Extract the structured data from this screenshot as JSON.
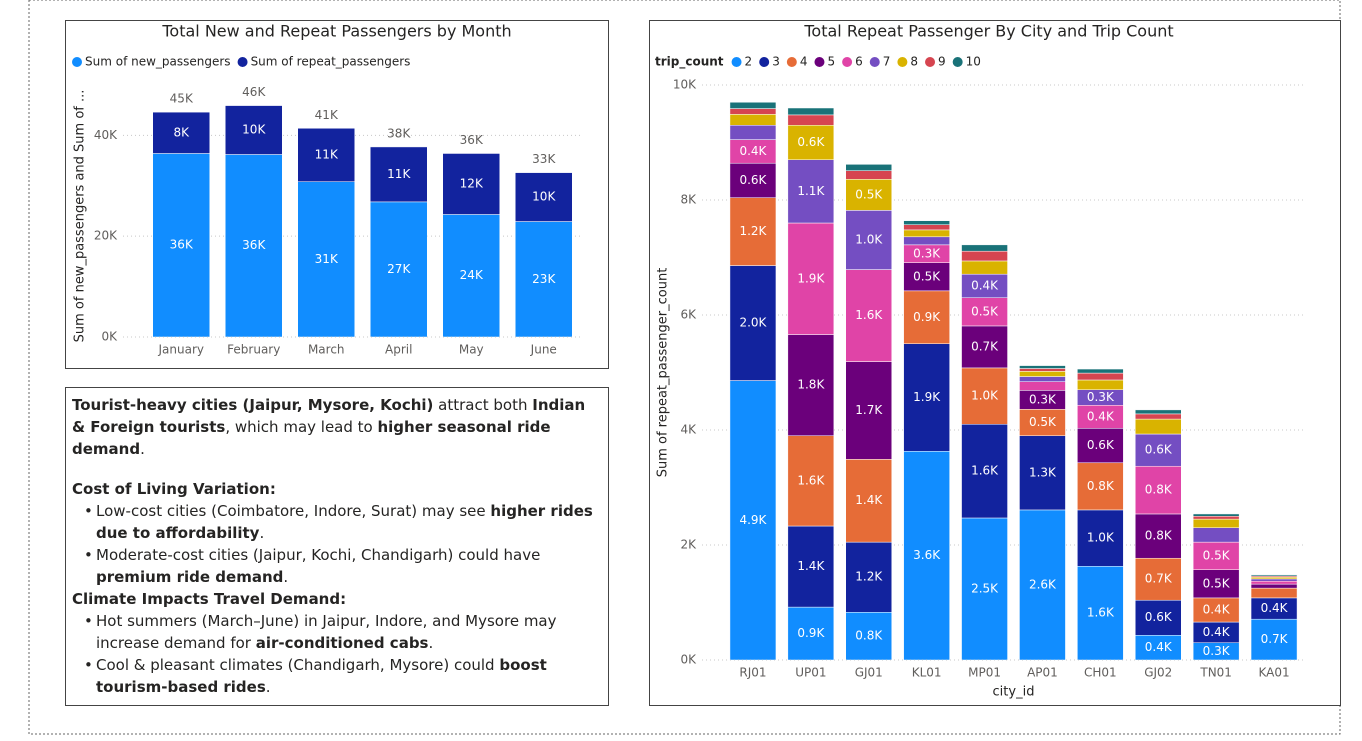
{
  "chart_data": [
    {
      "type": "bar",
      "stacked": true,
      "title": "Total New and Repeat Passengers by Month",
      "y_label": "Sum of new_passengers and Sum of ...",
      "categories": [
        "January",
        "February",
        "March",
        "April",
        "May",
        "June"
      ],
      "series": [
        {
          "name": "Sum of new_passengers",
          "color": "#118dff",
          "values": [
            36400,
            36200,
            30800,
            26800,
            24300,
            22900
          ],
          "value_labels": [
            "36K",
            "36K",
            "31K",
            "27K",
            "24K",
            "23K"
          ]
        },
        {
          "name": "Sum of repeat_passengers",
          "color": "#12239e",
          "values": [
            8200,
            9700,
            10600,
            10900,
            12100,
            9700
          ],
          "value_labels": [
            "8K",
            "10K",
            "11K",
            "11K",
            "12K",
            "10K"
          ]
        }
      ],
      "totals": [
        44600,
        45900,
        41400,
        37700,
        36400,
        32600
      ],
      "total_labels": [
        "45K",
        "46K",
        "41K",
        "38K",
        "36K",
        "33K"
      ],
      "ylim": [
        0,
        48000
      ],
      "yticks": [
        {
          "value": 0,
          "label": "0K"
        },
        {
          "value": 20000,
          "label": "20K"
        },
        {
          "value": 40000,
          "label": "40K"
        }
      ],
      "grid": true
    },
    {
      "type": "bar",
      "stacked": true,
      "title": "Total Repeat Passenger By City and Trip Count",
      "legend_title": "trip_count",
      "y_label": "Sum of repeat_passenger_count",
      "x_label": "city_id",
      "categories": [
        "RJ01",
        "UP01",
        "GJ01",
        "KL01",
        "MP01",
        "AP01",
        "CH01",
        "GJ02",
        "TN01",
        "KA01"
      ],
      "series": [
        {
          "name": "2",
          "color": "#118dff",
          "values": [
            4860,
            920,
            830,
            3630,
            2470,
            2610,
            1630,
            430,
            300,
            710
          ],
          "value_labels": [
            "4.9K",
            "0.9K",
            "0.8K",
            "3.6K",
            "2.5K",
            "2.6K",
            "1.6K",
            "0.4K",
            "0.3K",
            "0.7K"
          ]
        },
        {
          "name": "3",
          "color": "#12239e",
          "values": [
            2000,
            1410,
            1220,
            1870,
            1630,
            1290,
            980,
            610,
            360,
            370
          ],
          "value_labels": [
            "2.0K",
            "1.4K",
            "1.2K",
            "1.9K",
            "1.6K",
            "1.3K",
            "1.0K",
            "0.6K",
            "0.4K",
            "0.4K"
          ]
        },
        {
          "name": "4",
          "color": "#e66c37",
          "values": [
            1180,
            1570,
            1440,
            920,
            980,
            460,
            820,
            730,
            420,
            170
          ],
          "value_labels": [
            "1.2K",
            "1.6K",
            "1.4K",
            "0.9K",
            "1.0K",
            "0.5K",
            "0.8K",
            "0.7K",
            "0.4K",
            null
          ]
        },
        {
          "name": "5",
          "color": "#6b007b",
          "values": [
            600,
            1760,
            1700,
            490,
            730,
            330,
            600,
            770,
            490,
            70
          ],
          "value_labels": [
            "0.6K",
            "1.8K",
            "1.7K",
            "0.5K",
            "0.7K",
            "0.3K",
            "0.6K",
            "0.8K",
            "0.5K",
            null
          ]
        },
        {
          "name": "6",
          "color": "#e044a7",
          "values": [
            410,
            1940,
            1600,
            310,
            490,
            150,
            400,
            830,
            480,
            50
          ],
          "value_labels": [
            "0.4K",
            "1.9K",
            "1.6K",
            "0.3K",
            "0.5K",
            null,
            "0.4K",
            "0.8K",
            "0.5K",
            null
          ]
        },
        {
          "name": "7",
          "color": "#744ec2",
          "values": [
            250,
            1100,
            1030,
            140,
            410,
            90,
            270,
            560,
            250,
            40
          ],
          "value_labels": [
            null,
            "1.1K",
            "1.0K",
            null,
            "0.4K",
            null,
            "0.3K",
            "0.6K",
            null,
            null
          ]
        },
        {
          "name": "8",
          "color": "#d9b300",
          "values": [
            190,
            600,
            540,
            120,
            230,
            90,
            170,
            260,
            150,
            30
          ],
          "value_labels": [
            null,
            "0.6K",
            "0.5K",
            null,
            null,
            null,
            null,
            null,
            null,
            null
          ]
        },
        {
          "name": "9",
          "color": "#d64550",
          "values": [
            100,
            180,
            150,
            90,
            170,
            50,
            120,
            90,
            50,
            20
          ],
          "value_labels": [
            null,
            null,
            null,
            null,
            null,
            null,
            null,
            null,
            null,
            null
          ]
        },
        {
          "name": "10",
          "color": "#197278",
          "values": [
            110,
            120,
            110,
            70,
            110,
            50,
            70,
            70,
            40,
            20
          ],
          "value_labels": [
            null,
            null,
            null,
            null,
            null,
            null,
            null,
            null,
            null,
            null
          ]
        }
      ],
      "ylim": [
        0,
        10000
      ],
      "yticks": [
        {
          "value": 0,
          "label": "0K"
        },
        {
          "value": 2000,
          "label": "2K"
        },
        {
          "value": 4000,
          "label": "4K"
        },
        {
          "value": 6000,
          "label": "6K"
        },
        {
          "value": 8000,
          "label": "8K"
        },
        {
          "value": 10000,
          "label": "10K"
        }
      ],
      "grid": true
    }
  ],
  "text_box": {
    "blocks": [
      {
        "runs": [
          {
            "text": "Tourist-heavy cities (Jaipur, Mysore, Kochi)",
            "bold": true
          },
          {
            "text": " attract both "
          },
          {
            "text": "Indian & Foreign tourists",
            "bold": true
          },
          {
            "text": ", which may lead to "
          },
          {
            "text": "higher seasonal ride demand",
            "bold": true
          },
          {
            "text": "."
          }
        ]
      },
      {
        "heading": "Cost of Living Variation:",
        "bullets": [
          [
            {
              "text": "Low-cost cities (Coimbatore, Indore, Surat) may see "
            },
            {
              "text": "higher rides due to affordability",
              "bold": true
            },
            {
              "text": "."
            }
          ],
          [
            {
              "text": "Moderate-cost cities (Jaipur, Kochi, Chandigarh) could have "
            },
            {
              "text": "premium ride demand",
              "bold": true
            },
            {
              "text": "."
            }
          ]
        ]
      },
      {
        "heading": "Climate Impacts Travel Demand:",
        "bullets": [
          [
            {
              "text": "Hot summers (March–June) in Jaipur, Indore, and Mysore may increase demand for "
            },
            {
              "text": "air-conditioned cabs",
              "bold": true
            },
            {
              "text": "."
            }
          ],
          [
            {
              "text": "Cool & pleasant climates (Chandigarh, Mysore) could "
            },
            {
              "text": "boost tourism-based rides",
              "bold": true
            },
            {
              "text": "."
            }
          ]
        ]
      }
    ]
  }
}
